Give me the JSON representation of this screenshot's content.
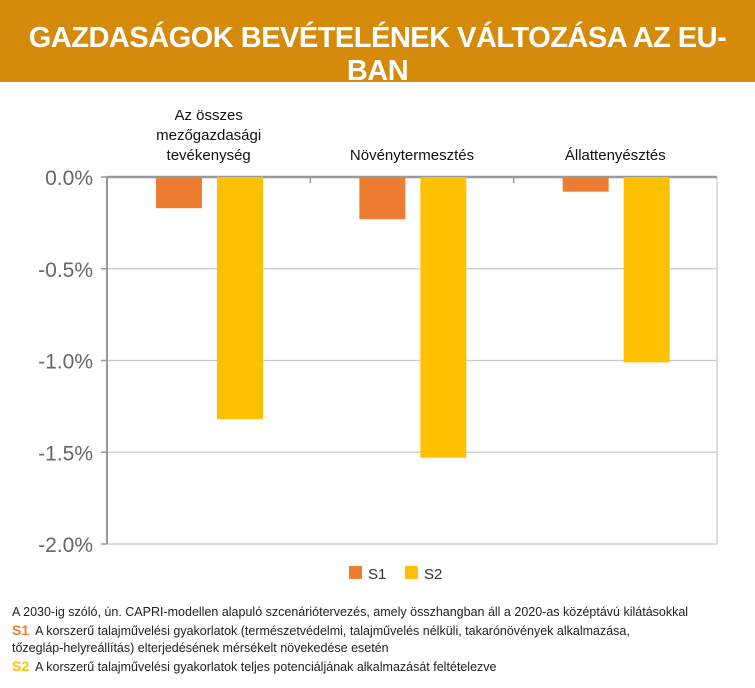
{
  "header": {
    "title": "GAZDASÁGOK BEVÉTELÉNEK VÁLTOZÁSA AZ EU-BAN"
  },
  "chart_data": {
    "type": "bar",
    "categories": [
      [
        "Az összes",
        "mezőgazdasági",
        "tevékenység"
      ],
      [
        "Növénytermesztés"
      ],
      [
        "Állattenyésztés"
      ]
    ],
    "series": [
      {
        "name": "S1",
        "color": "#ED7D31",
        "values": [
          -0.17,
          -0.23,
          -0.08
        ]
      },
      {
        "name": "S2",
        "color": "#FFC000",
        "values": [
          -1.32,
          -1.53,
          -1.01
        ]
      }
    ],
    "yticks": [
      "0.0%",
      "-0.5%",
      "-1.0%",
      "-1.5%",
      "-2.0%"
    ],
    "ytick_values": [
      0,
      -0.5,
      -1.0,
      -1.5,
      -2.0
    ],
    "ylim": [
      -2.0,
      0
    ],
    "grid": true,
    "legend": "bottom",
    "unit": "%"
  },
  "footer": {
    "line1": "A 2030-ig szóló, ún. CAPRI-modellen alapuló szcenáriótervezés, amely összhangban áll a 2020-as középtávú kilátásokkal",
    "s1_label": "S1",
    "s1_text": "A korszerű talajművelési gyakorlatok (természetvédelmi, talajművelés nélküli, takarónövények alkalmazása,",
    "s1_text2": "tőzegláp-helyreállítás) elterjedésének mérsékelt növekedése esetén",
    "s2_label": "S2",
    "s2_text": "A korszerű talajművelési gyakorlatok teljes potenciáljának alkalmazását feltételezve"
  }
}
